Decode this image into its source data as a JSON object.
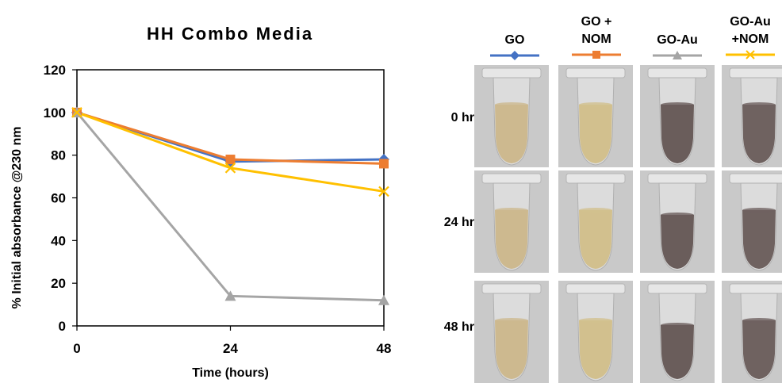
{
  "chart_data": {
    "type": "line",
    "title": "HH Combo Media",
    "xlabel": "Time (hours)",
    "ylabel": "% Initial absorbance @230 nm",
    "x": [
      0,
      24,
      48
    ],
    "xlim": [
      0,
      48
    ],
    "ylim": [
      0,
      120
    ],
    "yticks": [
      0,
      20,
      40,
      60,
      80,
      100,
      120
    ],
    "xticks": [
      0,
      24,
      48
    ],
    "grid": false,
    "series": [
      {
        "name": "GO",
        "values": [
          100,
          77,
          78
        ],
        "color": "#4472C4",
        "marker": "diamond"
      },
      {
        "name": "GO + NOM",
        "values": [
          100,
          78,
          76
        ],
        "color": "#ED7D31",
        "marker": "square"
      },
      {
        "name": "GO-Au",
        "values": [
          100,
          14,
          12
        ],
        "color": "#A5A5A5",
        "marker": "triangle"
      },
      {
        "name": "GO-Au +NOM",
        "values": [
          100,
          74,
          63
        ],
        "color": "#FFC000",
        "marker": "x"
      }
    ]
  },
  "photo_panel": {
    "columns": [
      {
        "label_lines": [
          "GO"
        ],
        "color": "#4472C4",
        "marker": "diamond",
        "liquid": "#cdb98f"
      },
      {
        "label_lines": [
          "GO +",
          "NOM"
        ],
        "color": "#ED7D31",
        "marker": "square",
        "liquid": "#d2c08e"
      },
      {
        "label_lines": [
          "GO-Au"
        ],
        "color": "#A5A5A5",
        "marker": "triangle",
        "liquid": "#6a5d5b"
      },
      {
        "label_lines": [
          "GO-Au",
          "+NOM"
        ],
        "color": "#FFC000",
        "marker": "x",
        "liquid": "#6f6260"
      }
    ],
    "rows": [
      "0 hr",
      "24 hr",
      "48 hr"
    ]
  }
}
